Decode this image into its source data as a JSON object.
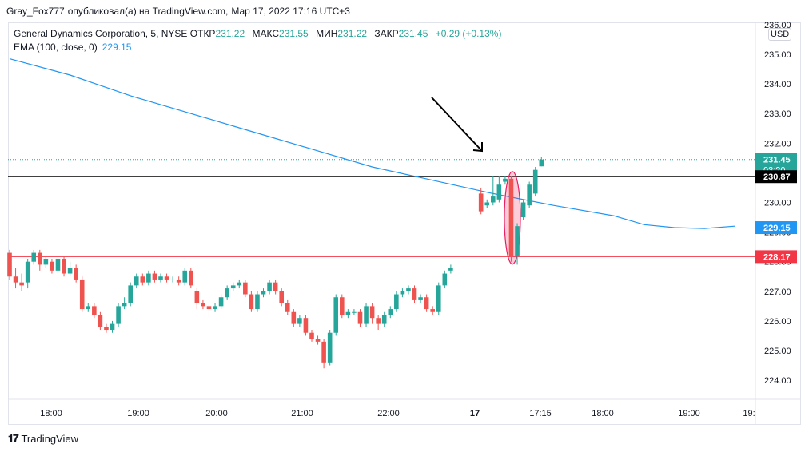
{
  "header": {
    "author": "Gray_Fox777",
    "published": "опубликовал(а) на TradingView.com,",
    "datetime": "Мар 17, 2022 17:16 UTC+3"
  },
  "legend": {
    "symbol": "General Dynamics Corporation, 5, NYSE",
    "open_label": "ОТКР",
    "open": "231.22",
    "high_label": "МАКС",
    "high": "231.55",
    "low_label": "МИН",
    "low": "231.22",
    "close_label": "ЗАКР",
    "close": "231.45",
    "change": "+0.29 (+0.13%)",
    "ema_label": "EMA (100, close, 0)",
    "ema_value": "229.15"
  },
  "currency": "USD",
  "brand": "TradingView",
  "chart_data": {
    "type": "candlestick",
    "interval": "5",
    "exchange": "NYSE",
    "y_ticks": [
      "236.00",
      "235.00",
      "234.00",
      "233.00",
      "232.00",
      "231.00",
      "230.00",
      "229.00",
      "228.00",
      "227.00",
      "226.00",
      "225.00",
      "224.00"
    ],
    "x_ticks": [
      "18:00",
      "19:00",
      "20:00",
      "21:00",
      "22:00",
      "17",
      "17:15",
      "18:00",
      "19:00",
      "19:"
    ],
    "price_labels": [
      {
        "text": "231.45",
        "sub": "03:20",
        "value": 231.45,
        "color": "#26a69a"
      },
      {
        "text": "230.87",
        "value": 230.87,
        "color": "#000000"
      },
      {
        "text": "229.15",
        "value": 229.15,
        "color": "#2196f3"
      },
      {
        "text": "228.17",
        "value": 228.17,
        "color": "#f23645"
      }
    ],
    "horizontal_lines": [
      {
        "value": 230.87,
        "color": "#000000"
      },
      {
        "value": 228.17,
        "color": "#f23645"
      }
    ],
    "ema": [
      [
        0,
        234.85
      ],
      [
        10,
        234.3
      ],
      [
        20,
        233.6
      ],
      [
        30,
        233.0
      ],
      [
        40,
        232.4
      ],
      [
        50,
        231.8
      ],
      [
        60,
        231.2
      ],
      [
        70,
        230.75
      ],
      [
        80,
        230.3
      ],
      [
        90,
        229.9
      ],
      [
        100,
        229.55
      ],
      [
        105,
        229.25
      ],
      [
        110,
        229.15
      ],
      [
        115,
        229.12
      ],
      [
        120,
        229.2
      ]
    ],
    "candles": [
      [
        0,
        228.3,
        227.5,
        228.4,
        227.4
      ],
      [
        1,
        227.5,
        227.3,
        227.8,
        227.1
      ],
      [
        2,
        227.3,
        227.2,
        227.6,
        227.0
      ],
      [
        3,
        227.3,
        228.0,
        228.1,
        227.1
      ],
      [
        4,
        228.0,
        228.3,
        228.4,
        227.9
      ],
      [
        5,
        228.3,
        227.9,
        228.4,
        227.7
      ],
      [
        6,
        227.9,
        228.1,
        228.2,
        227.8
      ],
      [
        7,
        228.0,
        227.7,
        228.1,
        227.6
      ],
      [
        8,
        227.7,
        228.1,
        228.2,
        227.6
      ],
      [
        9,
        228.1,
        227.6,
        228.2,
        227.5
      ],
      [
        10,
        227.6,
        227.8,
        228.0,
        227.5
      ],
      [
        11,
        227.8,
        227.4,
        227.9,
        227.3
      ],
      [
        12,
        227.4,
        226.4,
        227.5,
        226.3
      ],
      [
        13,
        226.4,
        226.5,
        226.6,
        226.3
      ],
      [
        14,
        226.5,
        226.2,
        226.6,
        226.1
      ],
      [
        15,
        226.2,
        225.8,
        226.3,
        225.7
      ],
      [
        16,
        225.8,
        225.7,
        225.9,
        225.6
      ],
      [
        17,
        225.7,
        225.9,
        226.0,
        225.6
      ],
      [
        18,
        225.9,
        226.5,
        226.6,
        225.8
      ],
      [
        19,
        226.5,
        226.6,
        226.8,
        226.4
      ],
      [
        20,
        226.6,
        227.2,
        227.3,
        226.5
      ],
      [
        21,
        227.2,
        227.5,
        227.6,
        227.1
      ],
      [
        22,
        227.5,
        227.3,
        227.6,
        227.2
      ],
      [
        23,
        227.3,
        227.6,
        227.7,
        227.2
      ],
      [
        24,
        227.6,
        227.4,
        227.7,
        227.3
      ],
      [
        25,
        227.4,
        227.5,
        227.6,
        227.3
      ],
      [
        26,
        227.5,
        227.4,
        227.6,
        227.3
      ],
      [
        27,
        227.4,
        227.4,
        227.5,
        227.3
      ],
      [
        28,
        227.4,
        227.3,
        227.5,
        227.2
      ],
      [
        29,
        227.3,
        227.7,
        227.8,
        227.2
      ],
      [
        30,
        227.7,
        227.2,
        227.8,
        227.1
      ],
      [
        31,
        227.0,
        226.6,
        227.1,
        226.4
      ],
      [
        32,
        226.6,
        226.5,
        226.7,
        226.4
      ],
      [
        33,
        226.5,
        226.4,
        226.6,
        226.1
      ],
      [
        34,
        226.4,
        226.5,
        226.6,
        226.3
      ],
      [
        35,
        226.5,
        226.8,
        226.9,
        226.4
      ],
      [
        36,
        226.8,
        227.1,
        227.2,
        226.7
      ],
      [
        37,
        227.1,
        227.2,
        227.3,
        227.0
      ],
      [
        38,
        227.2,
        227.3,
        227.4,
        227.1
      ],
      [
        39,
        227.3,
        226.9,
        227.4,
        226.8
      ],
      [
        40,
        226.9,
        226.4,
        227.0,
        226.3
      ],
      [
        41,
        226.4,
        226.9,
        227.0,
        226.3
      ],
      [
        42,
        226.9,
        227.0,
        227.1,
        226.8
      ],
      [
        43,
        227.0,
        227.3,
        227.4,
        226.9
      ],
      [
        44,
        227.3,
        227.0,
        227.4,
        226.9
      ],
      [
        45,
        227.0,
        226.6,
        227.1,
        226.5
      ],
      [
        46,
        226.6,
        226.3,
        226.7,
        226.2
      ],
      [
        47,
        226.3,
        225.9,
        226.4,
        225.8
      ],
      [
        48,
        225.9,
        226.1,
        226.2,
        225.8
      ],
      [
        49,
        226.1,
        225.6,
        226.2,
        225.5
      ],
      [
        50,
        225.6,
        225.4,
        225.7,
        225.3
      ],
      [
        51,
        225.4,
        225.3,
        225.5,
        225.2
      ],
      [
        52,
        225.3,
        224.6,
        225.4,
        224.4
      ],
      [
        53,
        224.6,
        225.6,
        225.7,
        224.5
      ],
      [
        54,
        225.6,
        226.8,
        226.9,
        225.5
      ],
      [
        55,
        226.8,
        226.2,
        226.9,
        226.1
      ],
      [
        56,
        226.2,
        226.3,
        226.4,
        226.1
      ],
      [
        57,
        226.3,
        226.3,
        226.4,
        226.2
      ],
      [
        58,
        226.3,
        225.9,
        226.4,
        225.8
      ],
      [
        59,
        225.9,
        226.5,
        226.6,
        225.8
      ],
      [
        60,
        226.5,
        226.1,
        226.6,
        225.9
      ],
      [
        61,
        226.1,
        225.9,
        226.2,
        225.7
      ],
      [
        62,
        225.9,
        226.2,
        226.3,
        225.8
      ],
      [
        63,
        226.2,
        226.4,
        226.5,
        226.1
      ],
      [
        64,
        226.4,
        226.9,
        227.0,
        226.3
      ],
      [
        65,
        226.9,
        227.0,
        227.1,
        226.8
      ],
      [
        66,
        227.0,
        227.1,
        227.2,
        226.9
      ],
      [
        67,
        227.1,
        226.7,
        227.2,
        226.6
      ],
      [
        68,
        226.7,
        226.8,
        226.9,
        226.6
      ],
      [
        69,
        226.8,
        226.4,
        226.9,
        226.3
      ],
      [
        70,
        226.4,
        226.3,
        226.5,
        226.2
      ],
      [
        71,
        226.3,
        227.2,
        227.3,
        226.2
      ],
      [
        72,
        227.2,
        227.6,
        227.7,
        227.1
      ],
      [
        73,
        227.7,
        227.8,
        227.9,
        227.6
      ],
      [
        78,
        230.3,
        229.7,
        230.5,
        229.6
      ],
      [
        79,
        229.9,
        230.0,
        230.1,
        229.8
      ],
      [
        80,
        230.0,
        230.2,
        230.9,
        229.9
      ],
      [
        81,
        230.1,
        230.6,
        230.9,
        230.0
      ],
      [
        82,
        230.7,
        230.8,
        230.9,
        230.6
      ],
      [
        83,
        230.8,
        228.2,
        230.9,
        228.0
      ],
      [
        84,
        228.2,
        229.2,
        229.3,
        227.9
      ],
      [
        85,
        229.5,
        230.0,
        230.1,
        229.4
      ],
      [
        86,
        229.9,
        230.6,
        230.7,
        229.8
      ],
      [
        87,
        230.3,
        231.1,
        231.2,
        230.2
      ],
      [
        88,
        231.22,
        231.45,
        231.55,
        231.22
      ]
    ]
  }
}
